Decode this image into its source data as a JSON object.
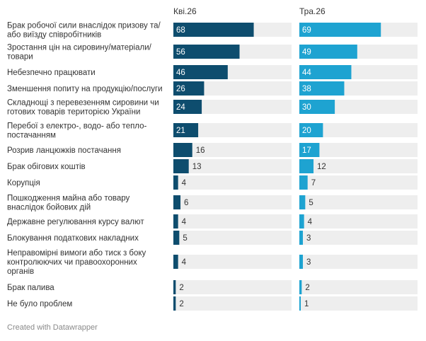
{
  "credit": "Created with Datawrapper",
  "colors": {
    "series1": "#0e4d6e",
    "series2": "#1ea3d1",
    "track": "#eeeeee"
  },
  "chart_data": {
    "type": "bar",
    "orientation": "horizontal",
    "layout": "split-columns",
    "xlim": [
      0,
      100
    ],
    "categories": [
      [
        "Брак робочої сили внаслідок призову та/",
        "або виїзду співробітників"
      ],
      [
        "Зростання цін на сировину/матеріали/",
        "товари"
      ],
      [
        "Небезпечно працювати"
      ],
      [
        "Зменшення попиту на продукцію/послуги"
      ],
      [
        "Складнощі з перевезенням сировини чи",
        "готових товарів територією України"
      ],
      [
        "Перебої з електро-, водо- або тепло-",
        "постачанням"
      ],
      [
        "Розрив ланцюжків постачання"
      ],
      [
        "Брак обігових коштів"
      ],
      [
        "Корупція"
      ],
      [
        "Пошкодження майна або товару",
        "внаслідок бойових дій"
      ],
      [
        "Державне регулювання курсу валют"
      ],
      [
        "Блокування податкових накладних"
      ],
      [
        "Неправомірні вимоги або тиск з боку",
        "контролюючих чи правоохоронних",
        "органів"
      ],
      [
        "Брак палива"
      ],
      [
        "Не було проблем"
      ]
    ],
    "series": [
      {
        "name": "Кві.26",
        "values": [
          68,
          56,
          46,
          26,
          24,
          21,
          16,
          13,
          4,
          6,
          4,
          5,
          4,
          2,
          2
        ]
      },
      {
        "name": "Тра.26",
        "values": [
          69,
          49,
          44,
          38,
          30,
          20,
          17,
          12,
          7,
          5,
          4,
          3,
          3,
          2,
          1
        ]
      }
    ]
  }
}
